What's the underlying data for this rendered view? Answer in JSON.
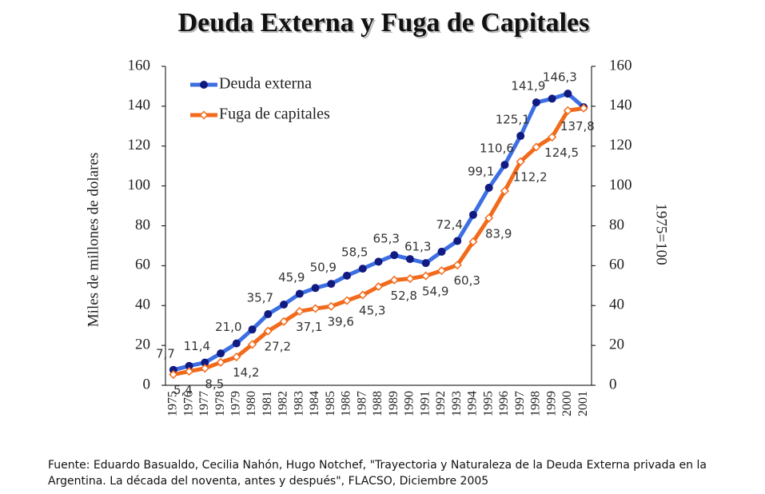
{
  "chart_data": {
    "type": "line",
    "title": "Deuda Externa y Fuga de Capitales",
    "y_label": "Miles de millones de dolares",
    "y2_label": "1975=100",
    "source": "Fuente: Eduardo Basualdo, Cecilia Nahón, Hugo Notchef, \"Trayectoria y Naturaleza de la Deuda Externa privada en la Argentina. La década del noventa, antes y después\", FLACSO, Diciembre 2005",
    "categories": [
      "1975",
      "1976",
      "1977",
      "1978",
      "1979",
      "1980",
      "1981",
      "1982",
      "1983",
      "1984",
      "1985",
      "1986",
      "1987",
      "1988",
      "1989",
      "1990",
      "1991",
      "1992",
      "1993",
      "1994",
      "1995",
      "1996",
      "1997",
      "1998",
      "1999",
      "2000",
      "2001"
    ],
    "series": [
      {
        "name": "Deuda externa",
        "color": "#3d6fe3",
        "marker_color": "#101a80",
        "values": [
          7.7,
          9.7,
          11.4,
          16,
          21.0,
          28,
          35.7,
          40.5,
          45.9,
          48.8,
          50.9,
          55,
          58.5,
          62,
          65.3,
          63.3,
          61.3,
          67,
          72.4,
          85.5,
          99.1,
          110.6,
          125.1,
          141.9,
          143.8,
          146.3,
          139.5
        ],
        "value_labels": [
          "7,7",
          null,
          "11,4",
          null,
          "21,0",
          null,
          "35,7",
          null,
          "45,9",
          null,
          "50,9",
          null,
          "58,5",
          null,
          "65,3",
          null,
          "61,3",
          null,
          "72,4",
          null,
          "99,1",
          "110,6",
          "125,1",
          "141,9",
          null,
          "146,3",
          null
        ]
      },
      {
        "name": "Fuga de capitales",
        "color": "#f26a1b",
        "marker_color": "#ffffff",
        "values": [
          5.4,
          7,
          8.5,
          11.5,
          14.2,
          20.5,
          27.2,
          32,
          37.1,
          38.5,
          39.6,
          42.5,
          45.3,
          49.5,
          52.8,
          53.5,
          54.9,
          57.5,
          60.3,
          72,
          83.9,
          97.5,
          112.2,
          119.5,
          124.5,
          137.8,
          139
        ],
        "value_labels": [
          "5,4",
          null,
          "8,5",
          null,
          "14,2",
          null,
          "27,2",
          null,
          "37,1",
          null,
          "39,6",
          null,
          "45,3",
          null,
          "52,8",
          null,
          "54,9",
          null,
          "60,3",
          null,
          "83,9",
          null,
          "112,2",
          null,
          "124,5",
          "137,8",
          null
        ]
      }
    ],
    "ylim": [
      0,
      160
    ],
    "yticks": [
      0,
      20,
      40,
      60,
      80,
      100,
      120,
      140,
      160
    ],
    "y2lim": [
      0,
      160
    ],
    "y2ticks": [
      0,
      20,
      40,
      60,
      80,
      100,
      120,
      140,
      160
    ],
    "grid": false,
    "legend": "top-left"
  }
}
